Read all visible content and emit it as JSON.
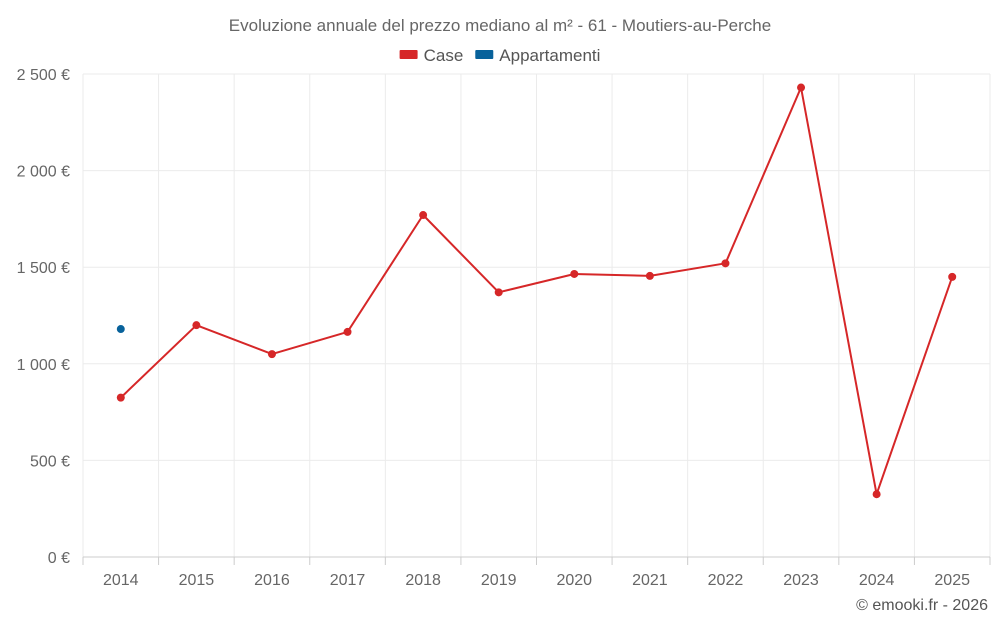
{
  "chart_data": {
    "type": "line",
    "title": "Evoluzione annuale del prezzo mediano al m² - 61 - Moutiers-au-Perche",
    "xlabel": "",
    "ylabel": "",
    "categories": [
      "2014",
      "2015",
      "2016",
      "2017",
      "2018",
      "2019",
      "2020",
      "2021",
      "2022",
      "2023",
      "2024",
      "2025"
    ],
    "ylim": [
      0,
      2500
    ],
    "yticks": [
      0,
      500,
      1000,
      1500,
      2000,
      2500
    ],
    "ytick_labels": [
      "0 €",
      "500 €",
      "1 000 €",
      "1 500 €",
      "2 000 €",
      "2 500 €"
    ],
    "grid": true,
    "legend_position": "top-center",
    "series": [
      {
        "name": "Case",
        "color": "#d62728",
        "values": [
          825,
          1200,
          1050,
          1165,
          1770,
          1370,
          1465,
          1455,
          1520,
          2430,
          325,
          1450
        ]
      },
      {
        "name": "Appartamenti",
        "color": "#08629b",
        "values": [
          1180,
          null,
          null,
          null,
          null,
          null,
          null,
          null,
          null,
          null,
          null,
          null
        ]
      }
    ]
  },
  "credit": "© emooki.fr - 2026"
}
